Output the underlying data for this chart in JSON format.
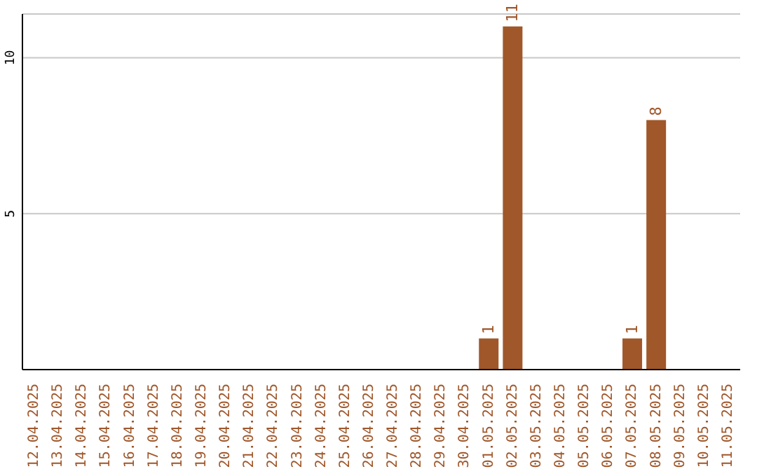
{
  "chart_data": {
    "type": "bar",
    "categories": [
      "12.04.2025",
      "13.04.2025",
      "14.04.2025",
      "15.04.2025",
      "16.04.2025",
      "17.04.2025",
      "18.04.2025",
      "19.04.2025",
      "20.04.2025",
      "21.04.2025",
      "22.04.2025",
      "23.04.2025",
      "24.04.2025",
      "25.04.2025",
      "26.04.2025",
      "27.04.2025",
      "28.04.2025",
      "29.04.2025",
      "30.04.2025",
      "01.05.2025",
      "02.05.2025",
      "03.05.2025",
      "04.05.2025",
      "05.05.2025",
      "06.05.2025",
      "07.05.2025",
      "08.05.2025",
      "09.05.2025",
      "10.05.2025",
      "11.05.2025"
    ],
    "values": [
      0,
      0,
      0,
      0,
      0,
      0,
      0,
      0,
      0,
      0,
      0,
      0,
      0,
      0,
      0,
      0,
      0,
      0,
      0,
      1,
      11,
      0,
      0,
      0,
      0,
      1,
      8,
      0,
      0,
      0
    ],
    "value_labels": [
      null,
      null,
      null,
      null,
      null,
      null,
      null,
      null,
      null,
      null,
      null,
      null,
      null,
      null,
      null,
      null,
      null,
      null,
      null,
      "1",
      "11",
      null,
      null,
      null,
      null,
      "1",
      "8",
      null,
      null,
      null
    ],
    "color": "#a0572a",
    "ylim": [
      0,
      11.4
    ],
    "yticks": [
      5,
      10
    ],
    "grid": "y"
  }
}
